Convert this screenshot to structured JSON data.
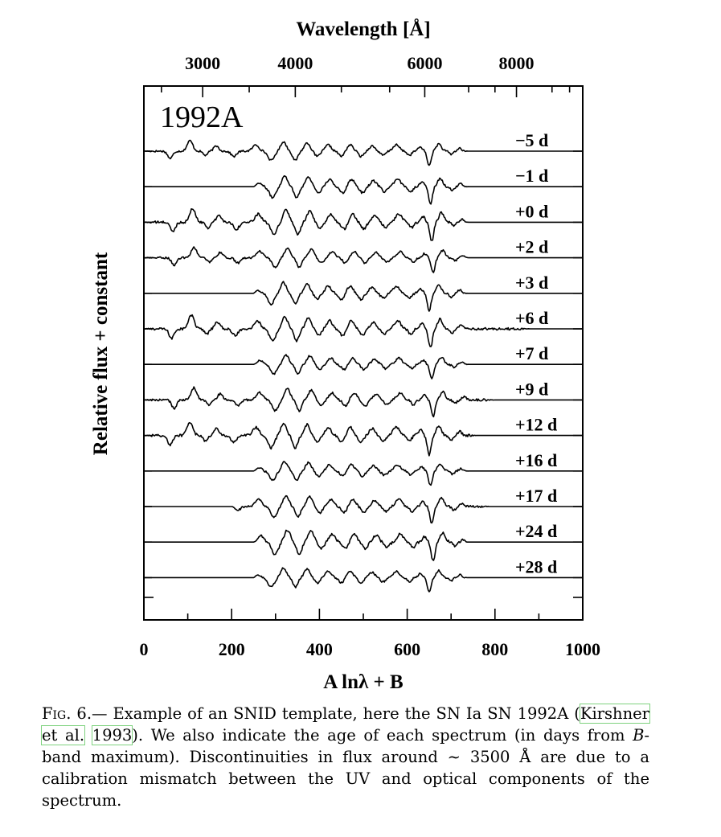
{
  "chart_data": {
    "type": "line",
    "panel_label": "1992A",
    "xlabel": "A lnλ + B",
    "xlabel_top": "Wavelength [Å]",
    "ylabel": "Relative flux + constant",
    "xlim": [
      0,
      1000
    ],
    "xticks": [
      "0",
      "200",
      "400",
      "600",
      "800",
      "1000"
    ],
    "top_ticks": [
      {
        "label": "3000",
        "x": 134
      },
      {
        "label": "4000",
        "x": 345
      },
      {
        "label": "6000",
        "x": 640
      },
      {
        "label": "8000",
        "x": 849
      }
    ],
    "series": [
      {
        "label": "−5 d",
        "start": 0,
        "end": 740
      },
      {
        "label": "−1 d",
        "start": 250,
        "end": 740
      },
      {
        "label": "+0 d",
        "start": 0,
        "end": 740
      },
      {
        "label": "+2 d",
        "start": 0,
        "end": 740
      },
      {
        "label": "+3 d",
        "start": 250,
        "end": 740
      },
      {
        "label": "+6 d",
        "start": 0,
        "end": 880
      },
      {
        "label": "+7 d",
        "start": 250,
        "end": 740
      },
      {
        "label": "+9 d",
        "start": 0,
        "end": 800
      },
      {
        "label": "+12 d",
        "start": 0,
        "end": 760
      },
      {
        "label": "+16 d",
        "start": 250,
        "end": 740
      },
      {
        "label": "+17 d",
        "start": 200,
        "end": 790
      },
      {
        "label": "+24 d",
        "start": 250,
        "end": 740
      },
      {
        "label": "+28 d",
        "start": 250,
        "end": 740
      }
    ]
  },
  "caption": {
    "fig_label": "Fig. 6.",
    "text_1": "— Example of an SNID template, here the SN Ia SN 1992A (",
    "ref_authors": "Kirshner et al.",
    "ref_year": "1993",
    "text_2": "). We also indicate the age of each spectrum (in days from ",
    "band": "B",
    "text_3": "-band maximum). Discontinuities in flux around ∼ 3500 Å are due to a calibration mismatch between the UV and optical components of the spectrum."
  }
}
